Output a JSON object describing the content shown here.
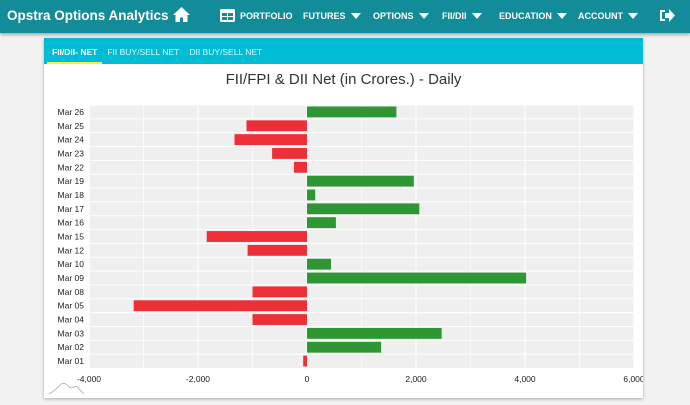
{
  "nav": {
    "brand": "Opstra Options Analytics",
    "items": [
      {
        "label": "PORTFOLIO",
        "icon": "grid-icon"
      },
      {
        "label": "FUTURES",
        "dropdown": true
      },
      {
        "label": "OPTIONS",
        "dropdown": true
      },
      {
        "label": "FII/DII",
        "dropdown": true
      },
      {
        "label": "EDUCATION",
        "dropdown": true
      },
      {
        "label": "ACCOUNT",
        "dropdown": true
      }
    ],
    "home_icon": "home-icon",
    "logout_icon": "logout-icon"
  },
  "tabs": [
    {
      "label": "FII/DII- NET",
      "active": true
    },
    {
      "label": "FII BUY/SELL NET"
    },
    {
      "label": "DII BUY/SELL NET"
    }
  ],
  "colors": {
    "nav": "#128c99",
    "tabs": "#00bcd4",
    "positive": "#2e9632",
    "negative": "#ef2f37"
  },
  "chart_data": {
    "type": "bar",
    "orientation": "horizontal",
    "title": "FII/FPI & DII Net (in Crores.) - Daily",
    "categories": [
      "Mar 26",
      "Mar 25",
      "Mar 24",
      "Mar 23",
      "Mar 22",
      "Mar 19",
      "Mar 18",
      "Mar 17",
      "Mar 16",
      "Mar 15",
      "Mar 12",
      "Mar 10",
      "Mar 09",
      "Mar 08",
      "Mar 05",
      "Mar 04",
      "Mar 03",
      "Mar 02",
      "Mar 01"
    ],
    "values": [
      1640,
      -1110,
      -1330,
      -640,
      -240,
      1960,
      150,
      2060,
      530,
      -1840,
      -1090,
      440,
      4020,
      -1000,
      -3180,
      -1000,
      2470,
      1360,
      -70
    ],
    "xlim": [
      -4000,
      6000
    ],
    "xticks": [
      "-4,000",
      "-2,000",
      "0",
      "2,000",
      "4,000",
      "6,000"
    ],
    "grid": true
  }
}
